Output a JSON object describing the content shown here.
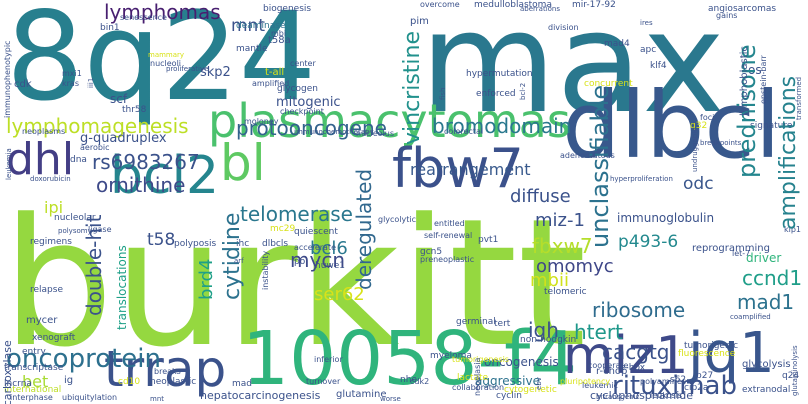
{
  "word_cloud": {
    "words": [
      {
        "text": "burkitt",
        "color": "#95d840"
      },
      {
        "text": "max",
        "color": "#2a788e"
      },
      {
        "text": "8q24",
        "color": "#277f8e"
      },
      {
        "text": "dlbcl",
        "color": "#38588c"
      },
      {
        "text": "10058-f4",
        "color": "#2fb47c"
      },
      {
        "text": "plasmacytomas",
        "color": "#4ac16d"
      },
      {
        "text": "trrap",
        "color": "#3b528b"
      },
      {
        "text": "miz1",
        "color": "#3e4989"
      },
      {
        "text": "jq1",
        "color": "#39568c"
      },
      {
        "text": "fbw7",
        "color": "#3b518b"
      },
      {
        "text": "bcl2",
        "color": "#25858e"
      },
      {
        "text": "bl",
        "color": "#5ec962"
      },
      {
        "text": "dhl",
        "color": "#433e85"
      },
      {
        "text": "oncoprotein",
        "color": "#2d708e"
      },
      {
        "text": "rituximab",
        "color": "#3b528b"
      },
      {
        "text": "lymphomagenesis",
        "color": "#bddf26"
      },
      {
        "text": "rs6983267",
        "color": "#3b528b"
      },
      {
        "text": "protooncogene",
        "color": "#33638d"
      },
      {
        "text": "unclassifiable",
        "color": "#2c728e"
      },
      {
        "text": "prednisone",
        "color": "#24868e"
      },
      {
        "text": "amplifications",
        "color": "#26828e"
      },
      {
        "text": "vincristine",
        "color": "#21918c"
      },
      {
        "text": "bromodomain",
        "color": "#2a788e"
      },
      {
        "text": "deregulated",
        "color": "#31688e"
      },
      {
        "text": "cytidine",
        "color": "#2c728e"
      },
      {
        "text": "double-hit",
        "color": "#3b528b"
      },
      {
        "text": "mycn",
        "color": "#3e4a89"
      },
      {
        "text": "htert",
        "color": "#1f988b"
      },
      {
        "text": "cacgtg",
        "color": "#3b528b"
      },
      {
        "text": "ribosome",
        "color": "#2f6c8e"
      },
      {
        "text": "ccnd1",
        "color": "#1f9e89"
      },
      {
        "text": "mad1",
        "color": "#2c728e"
      },
      {
        "text": "igh",
        "color": "#3b528b"
      },
      {
        "text": "fbxw7",
        "color": "#b5de2b"
      },
      {
        "text": "omomyc",
        "color": "#3f4788"
      },
      {
        "text": "ornithine",
        "color": "#3e4a89"
      },
      {
        "text": "telomerase",
        "color": "#2a778e"
      },
      {
        "text": "lymphomas",
        "color": "#481f70"
      },
      {
        "text": "diffuse",
        "color": "#3b528b"
      },
      {
        "text": "mbii",
        "color": "#d0e11c"
      },
      {
        "text": "ser62",
        "color": "#d8e219"
      },
      {
        "text": "bcl6",
        "color": "#2a788e"
      },
      {
        "text": "miz-1",
        "color": "#3b528b"
      },
      {
        "text": "rearrangement",
        "color": "#38598c"
      },
      {
        "text": "brd4",
        "color": "#1fa088"
      },
      {
        "text": "t58",
        "color": "#3b528b"
      },
      {
        "text": "ipi",
        "color": "#bddf26"
      },
      {
        "text": "bet",
        "color": "#a8db34"
      },
      {
        "text": "mnt",
        "color": "#3b528b"
      },
      {
        "text": "odc",
        "color": "#39568c"
      },
      {
        "text": "p493-6",
        "color": "#23898e"
      },
      {
        "text": "g-quadruplex",
        "color": "#3b528b"
      },
      {
        "text": "mitogenic",
        "color": "#3b528b"
      },
      {
        "text": "immunoglobulin",
        "color": "#3b528b"
      },
      {
        "text": "aggressive",
        "color": "#2c728e"
      },
      {
        "text": "oncogenesis",
        "color": "#3b528b"
      },
      {
        "text": "hepatocarcinogenesis",
        "color": "#3b528b"
      },
      {
        "text": "cyclophosphamide",
        "color": "#3b528b"
      },
      {
        "text": "glutamine",
        "color": "#3b528b"
      },
      {
        "text": "cyclin",
        "color": "#3b528b"
      },
      {
        "text": "r-chop",
        "color": "#3b528b"
      },
      {
        "text": "glycolysis",
        "color": "#3b528b"
      },
      {
        "text": "reprogramming",
        "color": "#3b528b"
      },
      {
        "text": "tumorigenic",
        "color": "#3b528b"
      },
      {
        "text": "extranodal",
        "color": "#3b528b"
      },
      {
        "text": "driver",
        "color": "#2fb47c"
      },
      {
        "text": "decarboxylase",
        "color": "#3b528b"
      },
      {
        "text": "translocations",
        "color": "#1fa088"
      },
      {
        "text": "mycer",
        "color": "#3b528b"
      },
      {
        "text": "myeloma",
        "color": "#3b528b"
      },
      {
        "text": "non-hodgkin",
        "color": "#3b528b"
      },
      {
        "text": "telomeric",
        "color": "#3b528b"
      },
      {
        "text": "germinal",
        "color": "#3b528b"
      },
      {
        "text": "neoplastic",
        "color": "#3b528b"
      },
      {
        "text": "transcriptase",
        "color": "#3b528b"
      },
      {
        "text": "international",
        "color": "#bddf26"
      },
      {
        "text": "cytogenetic",
        "color": "#d8e219"
      },
      {
        "text": "lactate",
        "color": "#d8e219"
      },
      {
        "text": "mantle",
        "color": "#3b528b"
      },
      {
        "text": "biogenesis",
        "color": "#3b528b"
      },
      {
        "text": "deaminase",
        "color": "#2c728e"
      },
      {
        "text": "medulloblastoma",
        "color": "#3b528b"
      },
      {
        "text": "mir-17-92",
        "color": "#3b528b"
      },
      {
        "text": "angiosarcomas",
        "color": "#3b528b"
      },
      {
        "text": "hypermutation",
        "color": "#3b528b"
      },
      {
        "text": "enforced",
        "color": "#3b528b"
      },
      {
        "text": "concurrent",
        "color": "#d8e219"
      },
      {
        "text": "glycogen",
        "color": "#3b528b"
      },
      {
        "text": "quiescent",
        "color": "#3b528b"
      },
      {
        "text": "nucleolar",
        "color": "#3b528b"
      },
      {
        "text": "polyposis",
        "color": "#3b528b"
      },
      {
        "text": "skp2",
        "color": "#3b528b"
      },
      {
        "text": "t-all",
        "color": "#d8e219"
      },
      {
        "text": "t58a",
        "color": "#3b528b"
      },
      {
        "text": "mbi",
        "color": "#3b528b"
      },
      {
        "text": "mad4",
        "color": "#3b528b"
      },
      {
        "text": "lymphoblastic",
        "color": "#3b528b"
      },
      {
        "text": "signature",
        "color": "#3b528b"
      },
      {
        "text": "let-7",
        "color": "#3b528b"
      },
      {
        "text": "gcn5",
        "color": "#3b528b"
      },
      {
        "text": "pvt1",
        "color": "#3b528b"
      },
      {
        "text": "ihc",
        "color": "#3b528b"
      },
      {
        "text": "dlbcls",
        "color": "#3b528b"
      },
      {
        "text": "mc29",
        "color": "#d8e219"
      },
      {
        "text": "tert",
        "color": "#3b528b"
      },
      {
        "text": "regimens",
        "color": "#3b528b"
      },
      {
        "text": "relapse",
        "color": "#3b528b"
      },
      {
        "text": "xenograft",
        "color": "#3b528b"
      },
      {
        "text": "entry",
        "color": "#3b528b"
      },
      {
        "text": "cd10",
        "color": "#d8e219"
      },
      {
        "text": "lncrna",
        "color": "#3b528b"
      },
      {
        "text": "ig",
        "color": "#3b528b"
      },
      {
        "text": "mad",
        "color": "#3b528b"
      },
      {
        "text": "nhe",
        "color": "#3b528b"
      },
      {
        "text": "scf",
        "color": "#3b528b"
      },
      {
        "text": "thr58",
        "color": "#3b528b"
      },
      {
        "text": "bin1",
        "color": "#3b528b"
      },
      {
        "text": "cdk",
        "color": "#3b528b"
      },
      {
        "text": "pim",
        "color": "#3b528b"
      },
      {
        "text": "apc",
        "color": "#3b528b"
      },
      {
        "text": "os",
        "color": "#3b528b"
      },
      {
        "text": "klf4",
        "color": "#3b528b"
      },
      {
        "text": "q32",
        "color": "#d8e219"
      },
      {
        "text": "q24",
        "color": "#3b528b"
      },
      {
        "text": "s62",
        "color": "#3b528b"
      },
      {
        "text": "p27",
        "color": "#3b528b"
      },
      {
        "text": "cip2a",
        "color": "#3b528b"
      },
      {
        "text": "pol",
        "color": "#3b528b"
      },
      {
        "text": "huwe1",
        "color": "#3b528b"
      },
      {
        "text": "turnover",
        "color": "#3b528b"
      },
      {
        "text": "inferior",
        "color": "#3b528b"
      },
      {
        "text": "interphase",
        "color": "#3b528b"
      },
      {
        "text": "ubiquitylation",
        "color": "#3b528b"
      },
      {
        "text": "breaks",
        "color": "#3b528b"
      },
      {
        "text": "collaboration",
        "color": "#3b528b"
      },
      {
        "text": "leukemic",
        "color": "#3b528b"
      },
      {
        "text": "cooperate",
        "color": "#3b528b"
      },
      {
        "text": "pluripotency",
        "color": "#d8e219"
      },
      {
        "text": "polyamines",
        "color": "#3b528b"
      },
      {
        "text": "fluorescence",
        "color": "#d8e219"
      },
      {
        "text": "e-box",
        "color": "#3b528b"
      },
      {
        "text": "accelerate",
        "color": "#3b528b"
      },
      {
        "text": "amplified",
        "color": "#3b528b"
      },
      {
        "text": "moloney",
        "color": "#3b528b"
      },
      {
        "text": "immunochemotherapy",
        "color": "#3b528b"
      },
      {
        "text": "nucleolus",
        "color": "#3b528b"
      },
      {
        "text": "colorectal",
        "color": "#3b528b"
      },
      {
        "text": "foci",
        "color": "#3b528b"
      },
      {
        "text": "gains",
        "color": "#3b528b"
      },
      {
        "text": "epstein-barr",
        "color": "#3b528b"
      },
      {
        "text": "senescence",
        "color": "#3b528b"
      },
      {
        "text": "overcome",
        "color": "#3b528b"
      },
      {
        "text": "center",
        "color": "#3b528b"
      },
      {
        "text": "nucleoli",
        "color": "#3b528b"
      },
      {
        "text": "mammary",
        "color": "#d8e219"
      },
      {
        "text": "mxi1",
        "color": "#3b528b"
      },
      {
        "text": "kras",
        "color": "#3b528b"
      },
      {
        "text": "immunophenotypic",
        "color": "#3b528b"
      },
      {
        "text": "neoplasms",
        "color": "#3b528b"
      },
      {
        "text": "aerobic",
        "color": "#3b528b"
      },
      {
        "text": "dna",
        "color": "#3b528b"
      },
      {
        "text": "polysomy",
        "color": "#3b528b"
      },
      {
        "text": "ligase",
        "color": "#3b528b"
      },
      {
        "text": "doxorubicin",
        "color": "#3b528b"
      },
      {
        "text": "leukemia",
        "color": "#3b528b"
      },
      {
        "text": "arf",
        "color": "#3b528b"
      },
      {
        "text": "instability",
        "color": "#3b528b"
      },
      {
        "text": "glycolytic",
        "color": "#3b528b"
      },
      {
        "text": "entitled",
        "color": "#3b528b"
      },
      {
        "text": "self-renewal",
        "color": "#3b528b"
      },
      {
        "text": "adenomatous",
        "color": "#3b528b"
      },
      {
        "text": "neoplasia",
        "color": "#3b528b"
      },
      {
        "text": "preneoplastic",
        "color": "#3b528b"
      },
      {
        "text": "tumorigenesis",
        "color": "#3b528b"
      },
      {
        "text": "cdk2",
        "color": "#3b528b"
      },
      {
        "text": "ebv",
        "color": "#d8e219"
      },
      {
        "text": "leukosis",
        "color": "#3b528b"
      },
      {
        "text": "bitransgenic",
        "color": "#3b528b"
      },
      {
        "text": "fish",
        "color": "#3b528b"
      },
      {
        "text": "bcl-2",
        "color": "#3b528b"
      },
      {
        "text": "hyperproliferation",
        "color": "#3b528b"
      },
      {
        "text": "coamplified",
        "color": "#3b528b"
      },
      {
        "text": "glutaminolysis",
        "color": "#3b528b"
      },
      {
        "text": "kip1",
        "color": "#3b528b"
      },
      {
        "text": "transformed",
        "color": "#3b528b"
      },
      {
        "text": "iii1",
        "color": "#3b528b"
      },
      {
        "text": "proliferative",
        "color": "#3b528b"
      },
      {
        "text": "checkpoint",
        "color": "#3b528b"
      },
      {
        "text": "division",
        "color": "#3b528b"
      },
      {
        "text": "undruggable",
        "color": "#3b528b"
      },
      {
        "text": "mnt",
        "color": "#3b528b"
      },
      {
        "text": "worse",
        "color": "#3b528b"
      },
      {
        "text": "aberrations",
        "color": "#3b528b"
      },
      {
        "text": "ires",
        "color": "#3b528b"
      },
      {
        "text": "breakpoints",
        "color": "#3b528b"
      }
    ]
  }
}
